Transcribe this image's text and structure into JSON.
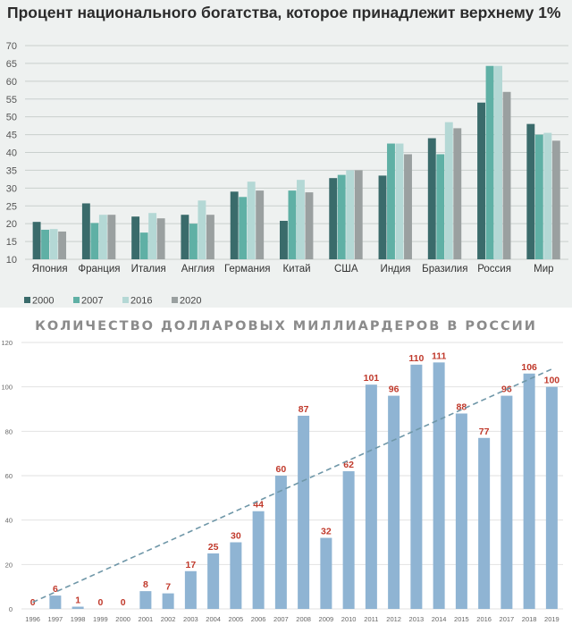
{
  "chart_data": [
    {
      "type": "bar",
      "title": "Процент национального богатства, которое принадлежит верхнему 1%",
      "categories": [
        "Япония",
        "Франция",
        "Италия",
        "Англия",
        "Германия",
        "Китай",
        "США",
        "Индия",
        "Бразилия",
        "Россия",
        "Мир"
      ],
      "series": [
        {
          "name": "2000",
          "color": "#3a6b6b",
          "values": [
            20.5,
            25.7,
            22,
            22.5,
            29,
            20.8,
            32.8,
            33.5,
            44,
            54,
            48
          ]
        },
        {
          "name": "2007",
          "color": "#5fb0a5",
          "values": [
            18.3,
            20.2,
            17.5,
            20,
            27.5,
            29.3,
            33.7,
            42.5,
            39.5,
            64.3,
            45
          ]
        },
        {
          "name": "2016",
          "color": "#b4d8d5",
          "values": [
            18.5,
            22.5,
            23,
            26.5,
            31.8,
            32.3,
            35,
            42.5,
            48.5,
            64.3,
            45.5
          ]
        },
        {
          "name": "2020",
          "color": "#9aa0a0",
          "values": [
            17.8,
            22.5,
            21.5,
            22.5,
            29.3,
            28.8,
            35,
            39.5,
            46.8,
            57,
            43.3
          ]
        }
      ],
      "ylim": [
        10,
        70
      ],
      "yticks": [
        10,
        15,
        20,
        25,
        30,
        35,
        40,
        45,
        50,
        55,
        60,
        65,
        70
      ],
      "grid": true,
      "legend": "bottom-left"
    },
    {
      "type": "bar",
      "title": "КОЛИЧЕСТВО ДОЛЛАРОВЫХ МИЛЛИАРДЕРОВ В РОССИИ",
      "categories": [
        "1996",
        "1997",
        "1998",
        "1999",
        "2000",
        "2001",
        "2002",
        "2003",
        "2004",
        "2005",
        "2006",
        "2007",
        "2008",
        "2009",
        "2010",
        "2011",
        "2012",
        "2013",
        "2014",
        "2015",
        "2016",
        "2017",
        "2018",
        "2019"
      ],
      "values": [
        0,
        6,
        1,
        0,
        0,
        8,
        7,
        17,
        25,
        30,
        44,
        60,
        87,
        32,
        62,
        101,
        96,
        110,
        111,
        88,
        77,
        96,
        106,
        100
      ],
      "data_labels": [
        "0",
        "6",
        "1",
        "0",
        "0",
        "8",
        "7",
        "17",
        "25",
        "30",
        "44",
        "60",
        "87",
        "32",
        "62",
        "101",
        "96",
        "110",
        "111",
        "88",
        "77",
        "96",
        "106",
        "100"
      ],
      "trendline": {
        "style": "dashed",
        "start": 3,
        "end": 108
      },
      "bar_color": "#8fb4d3",
      "label_color": "#c0392b",
      "ylim": [
        0,
        120
      ],
      "yticks": [
        0,
        20,
        40,
        60,
        80,
        100,
        120
      ],
      "grid": true
    }
  ]
}
